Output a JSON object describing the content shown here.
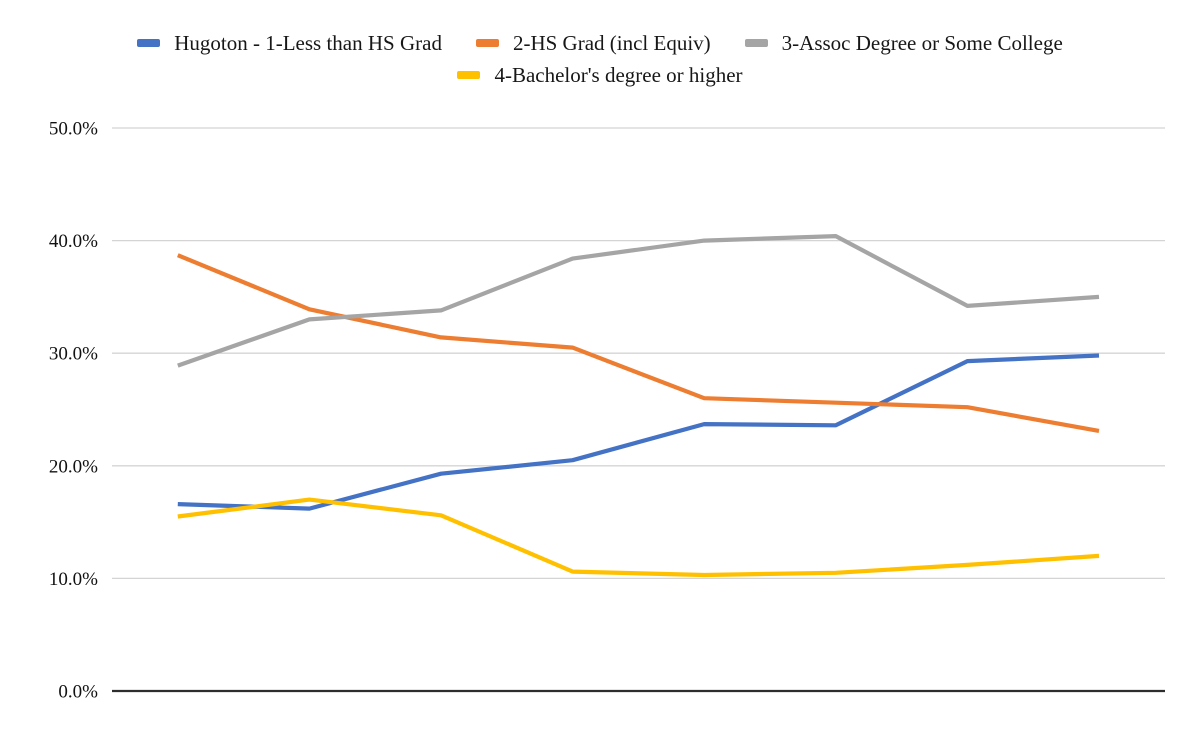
{
  "chart_data": {
    "type": "line",
    "title": "",
    "x_axis": {
      "labels_visible": false,
      "point_count": 8
    },
    "y_axis": {
      "min": 0,
      "max": 50,
      "ticks": [
        {
          "label": "0.0%",
          "value": 0
        },
        {
          "label": "10.0%",
          "value": 10
        },
        {
          "label": "20.0%",
          "value": 20
        },
        {
          "label": "30.0%",
          "value": 30
        },
        {
          "label": "40.0%",
          "value": 40
        },
        {
          "label": "50.0%",
          "value": 50
        }
      ]
    },
    "grid": true,
    "legend_position": "top-center",
    "series": [
      {
        "name": "Hugoton - 1-Less than HS Grad",
        "color": "#4472C4",
        "values": [
          16.6,
          16.2,
          19.3,
          20.5,
          23.7,
          23.6,
          29.3,
          29.8
        ]
      },
      {
        "name": "2-HS Grad (incl Equiv)",
        "color": "#ED7D31",
        "values": [
          38.7,
          33.9,
          31.4,
          30.5,
          26.0,
          25.6,
          25.2,
          23.1
        ]
      },
      {
        "name": "3-Assoc Degree or Some College",
        "color": "#A5A5A5",
        "values": [
          28.9,
          33.0,
          33.8,
          38.4,
          40.0,
          40.4,
          34.2,
          35.0
        ]
      },
      {
        "name": "4-Bachelor's degree or higher",
        "color": "#FFC000",
        "values": [
          15.5,
          17.0,
          15.6,
          10.6,
          10.3,
          10.5,
          11.2,
          12.0
        ]
      }
    ],
    "colors": {
      "gridline": "#d4d4d4",
      "axis_line": "#2d2d2d",
      "tick_text": "#111111",
      "background": "#ffffff"
    }
  }
}
